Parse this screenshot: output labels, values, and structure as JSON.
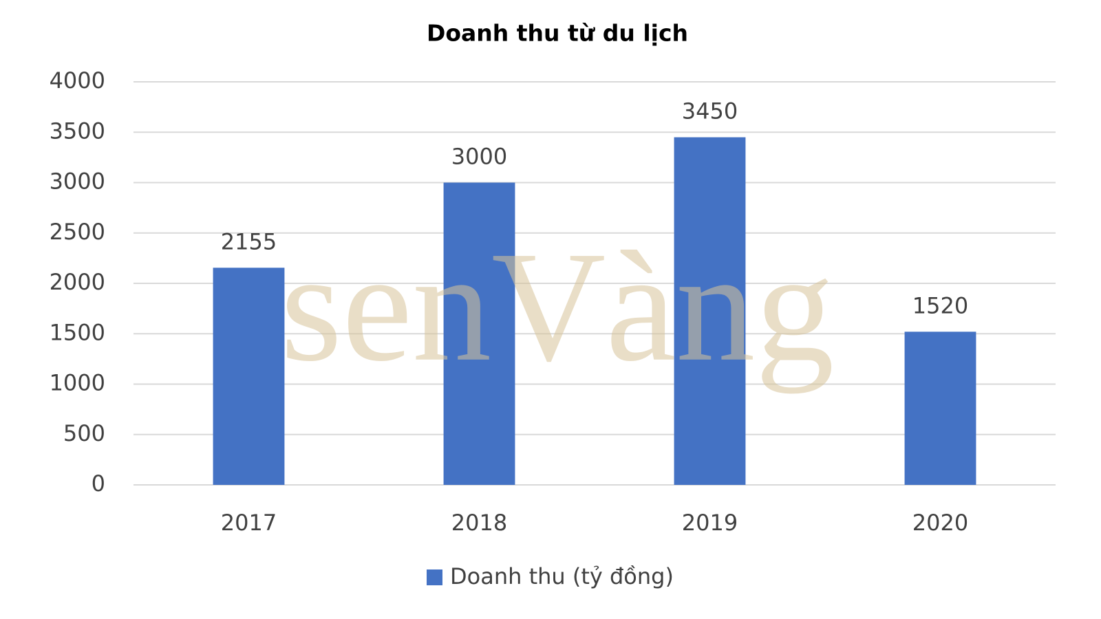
{
  "chart_data": {
    "type": "bar",
    "title": "Doanh thu từ du lịch",
    "categories": [
      "2017",
      "2018",
      "2019",
      "2020"
    ],
    "series": [
      {
        "name": "Doanh thu (tỷ đồng)",
        "color": "#4472c4",
        "values": [
          2155,
          3000,
          3450,
          1520
        ]
      }
    ],
    "ylim": [
      0,
      4000
    ],
    "yticks": [
      0,
      500,
      1000,
      1500,
      2000,
      2500,
      3000,
      3500,
      4000
    ],
    "grid": true,
    "data_labels": true,
    "legend": "bottom",
    "watermark": "senVàng"
  }
}
